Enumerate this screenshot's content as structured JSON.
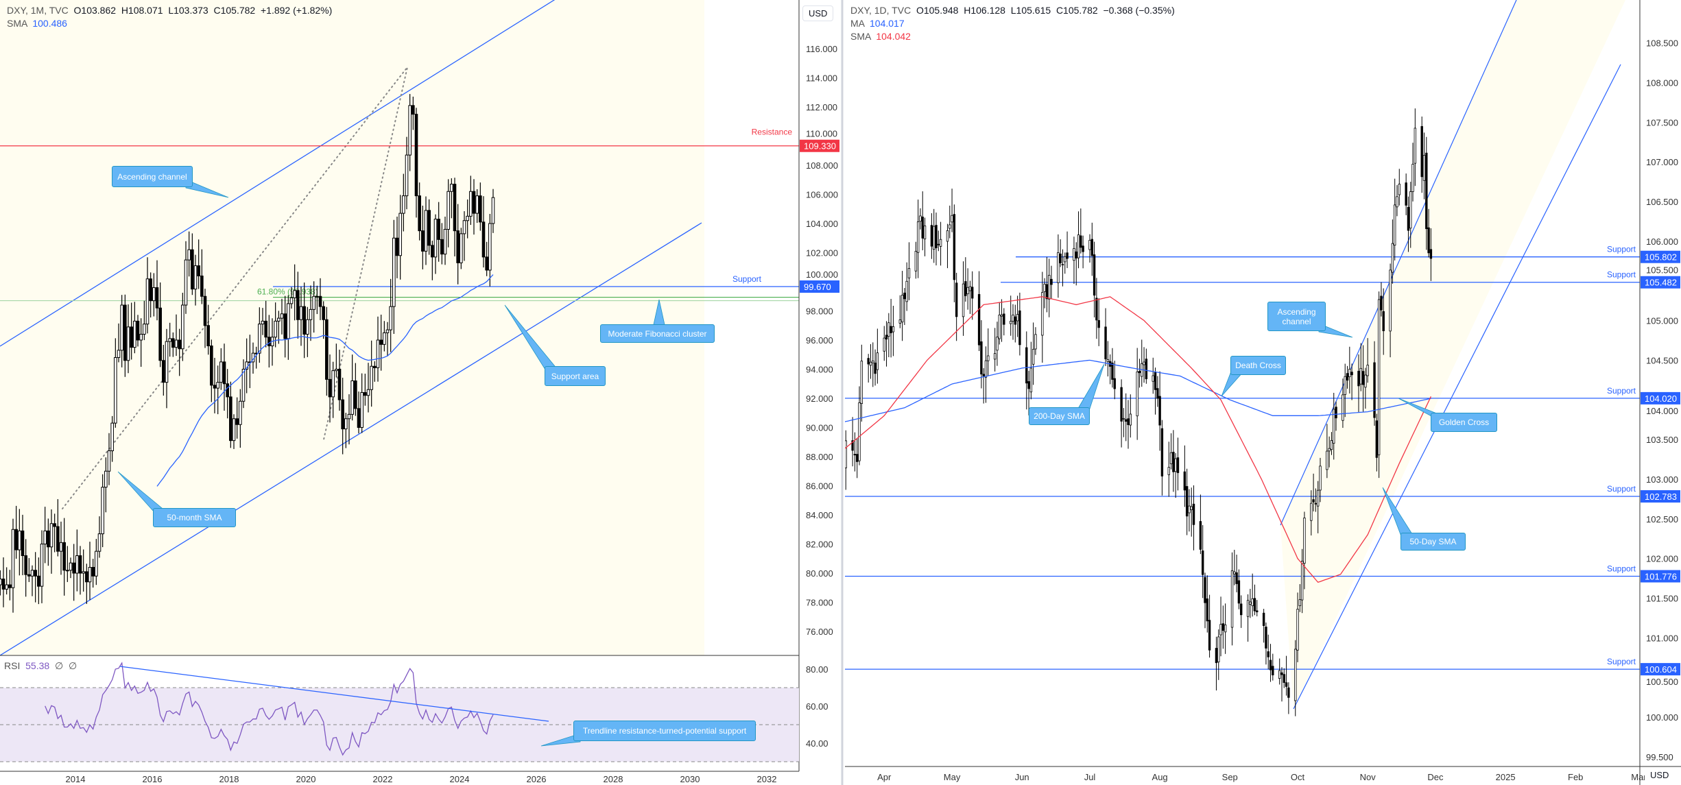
{
  "left": {
    "header": {
      "symbol": "DXY, 1M, TVC",
      "open": "O103.862",
      "high": "H108.071",
      "low": "L103.373",
      "close": "C105.782",
      "change": "+1.892 (+1.82%)",
      "sma_label": "SMA",
      "sma_value": "100.486"
    },
    "currency": "USD",
    "rsi_header": {
      "label": "RSI",
      "value": "55.38",
      "extra1": "∅",
      "extra2": "∅"
    }
  },
  "right": {
    "header": {
      "symbol": "DXY, 1D, TVC",
      "open": "O105.948",
      "high": "H106.128",
      "low": "L105.615",
      "close": "C105.782",
      "change": "−0.368 (−0.35%)",
      "ma_label": "MA",
      "ma_value": "104.017",
      "sma_label": "SMA",
      "sma_value": "104.042"
    },
    "currency": "USD"
  },
  "colors": {
    "up_body": "#ffffff",
    "down_body": "#000000",
    "wick": "#000000",
    "channel": "#2962ff",
    "channel_fill": "#fffdf0",
    "resistance": "#f23645",
    "support": "#2962ff",
    "fib": "#4caf50",
    "sma_left": "#2962ff",
    "sma50_right": "#f23645",
    "ma200_right": "#2962ff",
    "rsi": "#7e57c2",
    "rsi_band": "#ede7f6",
    "callout": "#64b5f6"
  },
  "chart_data": [
    {
      "type": "candlestick",
      "title": "DXY, 1M, TVC",
      "interval": "monthly",
      "monthly_closes": {
        "start": "2012-01",
        "values": [
          79.6,
          78.9,
          79.2,
          79.0,
          83.0,
          81.6,
          82.9,
          81.2,
          79.9,
          79.8,
          80.2,
          79.8,
          79.1,
          82.0,
          82.9,
          81.8,
          83.4,
          83.2,
          81.5,
          82.1,
          80.2,
          80.2,
          80.7,
          80.0,
          81.2,
          80.0,
          80.1,
          79.4,
          80.4,
          79.8,
          81.5,
          82.7,
          85.9,
          87.0,
          88.4,
          90.3,
          94.8,
          95.3,
          98.4,
          94.6,
          96.9,
          95.5,
          97.3,
          96.0,
          96.4,
          97.1,
          100.2,
          98.7,
          99.6,
          98.2,
          94.6,
          93.1,
          95.9,
          96.1,
          95.5,
          96.0,
          95.4,
          98.4,
          101.5,
          102.2,
          99.5,
          101.1,
          100.4,
          99.0,
          97.0,
          95.6,
          92.9,
          92.7,
          93.1,
          94.5,
          93.0,
          92.1,
          89.1,
          90.6,
          90.2,
          91.8,
          94.0,
          94.5,
          94.5,
          95.1,
          95.1,
          97.1,
          97.3,
          96.2,
          95.6,
          96.2,
          97.3,
          97.5,
          97.8,
          96.1,
          98.5,
          98.9,
          99.4,
          97.4,
          98.3,
          96.4,
          97.4,
          98.1,
          99.0,
          99.0,
          98.3,
          97.4,
          93.3,
          92.1,
          93.9,
          94.0,
          91.9,
          89.9,
          90.6,
          90.9,
          93.2,
          91.3,
          90.0,
          92.4,
          92.2,
          92.6,
          94.2,
          94.1,
          96.0,
          95.7,
          96.5,
          96.7,
          98.3,
          103.0,
          101.8,
          104.7,
          105.9,
          108.7,
          112.1,
          111.5,
          105.9,
          103.5,
          102.1,
          104.9,
          102.5,
          101.7,
          104.3,
          102.9,
          101.9,
          103.6,
          106.2,
          106.7,
          103.5,
          101.3,
          103.3,
          104.2,
          104.5,
          106.2,
          104.7,
          105.9,
          104.1,
          101.7,
          100.8,
          104.0,
          105.782
        ]
      },
      "ylim": [
        74.7,
        119.3
      ],
      "y_ticks": [
        "116.000",
        "114.000",
        "112.000",
        "110.000",
        "108.000",
        "106.000",
        "104.000",
        "102.000",
        "100.000",
        "98.000",
        "96.000",
        "94.000",
        "92.000",
        "90.000",
        "88.000",
        "86.000",
        "84.000",
        "82.000",
        "80.000",
        "78.000",
        "76.000"
      ],
      "x_ticks": [
        "2014",
        "2016",
        "2018",
        "2020",
        "2022",
        "2024",
        "2026",
        "2028",
        "2030",
        "2032"
      ],
      "levels": [
        {
          "label": "Resistance",
          "price": "109.330",
          "kind": "resistance"
        },
        {
          "label": "Support",
          "price": "99.670",
          "kind": "support"
        },
        {
          "label": "61.80% (98.938)",
          "price": "98.938",
          "kind": "fib"
        }
      ],
      "indicators": {
        "sma_period": 50,
        "rsi_period": 14,
        "rsi_ticks": [
          "80.00",
          "60.00",
          "40.00"
        ],
        "rsi_bands": [
          70,
          50,
          30
        ]
      },
      "annotations": [
        {
          "text": "Ascending channel"
        },
        {
          "text": "50-month SMA"
        },
        {
          "text": "Support area"
        },
        {
          "text": "Moderate Fibonacci cluster"
        },
        {
          "text": "Trendline resistance-turned-potential support"
        }
      ]
    },
    {
      "type": "candlestick",
      "title": "DXY, 1D, TVC",
      "interval": "daily",
      "start": "2024-03-14",
      "close_path": [
        [
          "2024-03-11",
          102.8
        ],
        [
          "2024-03-15",
          103.4
        ],
        [
          "2024-03-20",
          103.3
        ],
        [
          "2024-03-22",
          104.4
        ],
        [
          "2024-03-28",
          104.5
        ],
        [
          "2024-04-02",
          104.8
        ],
        [
          "2024-04-10",
          105.2
        ],
        [
          "2024-04-16",
          106.2
        ],
        [
          "2024-04-19",
          106.1
        ],
        [
          "2024-04-26",
          106.0
        ],
        [
          "2024-05-01",
          106.3
        ],
        [
          "2024-05-03",
          105.0
        ],
        [
          "2024-05-08",
          105.5
        ],
        [
          "2024-05-15",
          104.3
        ],
        [
          "2024-05-22",
          104.9
        ],
        [
          "2024-05-29",
          105.1
        ],
        [
          "2024-06-04",
          104.1
        ],
        [
          "2024-06-07",
          104.9
        ],
        [
          "2024-06-14",
          105.6
        ],
        [
          "2024-06-21",
          105.8
        ],
        [
          "2024-06-26",
          106.0
        ],
        [
          "2024-07-01",
          105.9
        ],
        [
          "2024-07-05",
          104.9
        ],
        [
          "2024-07-12",
          104.1
        ],
        [
          "2024-07-17",
          103.7
        ],
        [
          "2024-07-24",
          104.4
        ],
        [
          "2024-07-31",
          104.1
        ],
        [
          "2024-08-02",
          103.2
        ],
        [
          "2024-08-07",
          103.2
        ],
        [
          "2024-08-14",
          102.6
        ],
        [
          "2024-08-19",
          102.1
        ],
        [
          "2024-08-23",
          100.7
        ],
        [
          "2024-08-27",
          100.9
        ],
        [
          "2024-09-03",
          101.8
        ],
        [
          "2024-09-06",
          101.2
        ],
        [
          "2024-09-11",
          101.6
        ],
        [
          "2024-09-17",
          100.9
        ],
        [
          "2024-09-20",
          100.7
        ],
        [
          "2024-09-27",
          100.4
        ],
        [
          "2024-10-01",
          101.2
        ],
        [
          "2024-10-04",
          102.5
        ],
        [
          "2024-10-10",
          102.9
        ],
        [
          "2024-10-16",
          103.6
        ],
        [
          "2024-10-23",
          104.4
        ],
        [
          "2024-10-28",
          104.3
        ],
        [
          "2024-11-01",
          104.3
        ],
        [
          "2024-11-05",
          103.4
        ],
        [
          "2024-11-06",
          105.1
        ],
        [
          "2024-11-08",
          105.0
        ],
        [
          "2024-11-12",
          106.0
        ],
        [
          "2024-11-14",
          106.7
        ],
        [
          "2024-11-19",
          106.2
        ],
        [
          "2024-11-22",
          107.5
        ],
        [
          "2024-11-25",
          106.9
        ],
        [
          "2024-11-26",
          107.0
        ],
        [
          "2024-11-27",
          106.1
        ],
        [
          "2024-11-29",
          105.782
        ]
      ],
      "sma50": [
        [
          "2024-03-11",
          103.3
        ],
        [
          "2024-04-01",
          103.8
        ],
        [
          "2024-04-20",
          104.5
        ],
        [
          "2024-05-15",
          105.2
        ],
        [
          "2024-06-10",
          105.3
        ],
        [
          "2024-06-25",
          105.2
        ],
        [
          "2024-07-10",
          105.3
        ],
        [
          "2024-07-25",
          105.0
        ],
        [
          "2024-08-15",
          104.4
        ],
        [
          "2024-08-28",
          104.0
        ],
        [
          "2024-09-15",
          103.0
        ],
        [
          "2024-10-01",
          102.0
        ],
        [
          "2024-10-10",
          101.7
        ],
        [
          "2024-10-20",
          101.8
        ],
        [
          "2024-11-01",
          102.3
        ],
        [
          "2024-11-15",
          103.2
        ],
        [
          "2024-11-29",
          104.042
        ]
      ],
      "ma200": [
        [
          "2024-03-11",
          103.7
        ],
        [
          "2024-04-10",
          103.9
        ],
        [
          "2024-05-01",
          104.2
        ],
        [
          "2024-06-01",
          104.4
        ],
        [
          "2024-07-01",
          104.5
        ],
        [
          "2024-07-20",
          104.4
        ],
        [
          "2024-08-10",
          104.3
        ],
        [
          "2024-09-01",
          104.0
        ],
        [
          "2024-09-20",
          103.8
        ],
        [
          "2024-10-10",
          103.8
        ],
        [
          "2024-11-01",
          103.85
        ],
        [
          "2024-11-29",
          104.017
        ]
      ],
      "ylim": [
        99.15,
        109.0
      ],
      "y_ticks": [
        "108.500",
        "108.000",
        "107.500",
        "107.000",
        "106.500",
        "106.000",
        "105.500",
        "105.000",
        "104.500",
        "104.000",
        "103.500",
        "103.000",
        "102.500",
        "102.000",
        "101.500",
        "101.000",
        "100.500",
        "100.000",
        "99.500"
      ],
      "x_ticks": [
        [
          "Apr",
          "2024-04-01"
        ],
        [
          "May",
          "2024-05-01"
        ],
        [
          "Jun",
          "2024-06-01"
        ],
        [
          "Jul",
          "2024-07-01"
        ],
        [
          "Aug",
          "2024-08-01"
        ],
        [
          "Sep",
          "2024-09-01"
        ],
        [
          "Oct",
          "2024-10-01"
        ],
        [
          "Nov",
          "2024-11-01"
        ],
        [
          "Dec",
          "2024-12-01"
        ],
        [
          "2025",
          "2025-01-01"
        ],
        [
          "Feb",
          "2025-02-01"
        ],
        [
          "Mar",
          "2025-03-01"
        ]
      ],
      "levels": [
        {
          "label": "Support",
          "price": "105.802"
        },
        {
          "label": "Support",
          "price": "105.482"
        },
        {
          "label": "Support",
          "price": "104.020"
        },
        {
          "label": "Support",
          "price": "102.783"
        },
        {
          "label": "Support",
          "price": "101.776"
        },
        {
          "label": "Support",
          "price": "100.604"
        }
      ],
      "annotations": [
        {
          "text": "Ascending channel"
        },
        {
          "text": "Death Cross"
        },
        {
          "text": "200-Day SMA"
        },
        {
          "text": "Golden Cross"
        },
        {
          "text": "50-Day SMA"
        }
      ]
    }
  ]
}
